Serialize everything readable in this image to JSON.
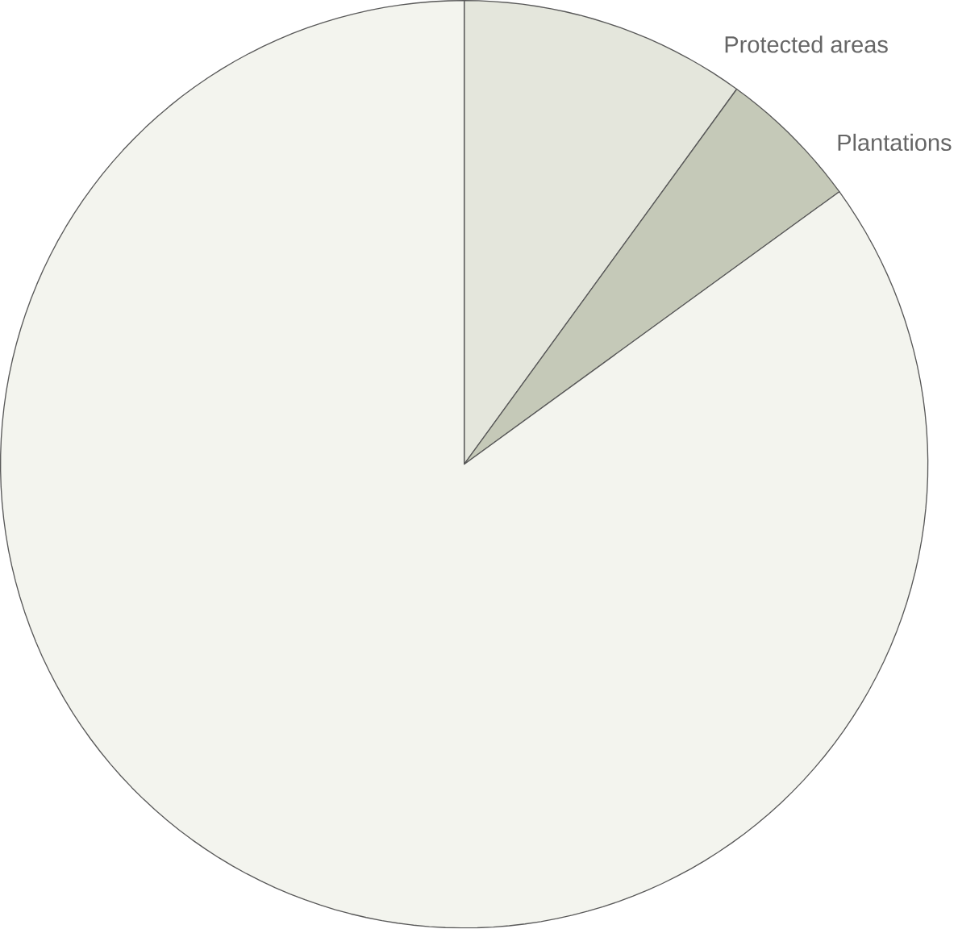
{
  "chart_data": {
    "type": "pie",
    "categories": [
      "Protected areas",
      "Plantations",
      null
    ],
    "values": [
      10,
      5,
      85
    ],
    "colors": [
      "#e4e6dc",
      "#c5c9b8",
      "#f3f4ee"
    ]
  }
}
